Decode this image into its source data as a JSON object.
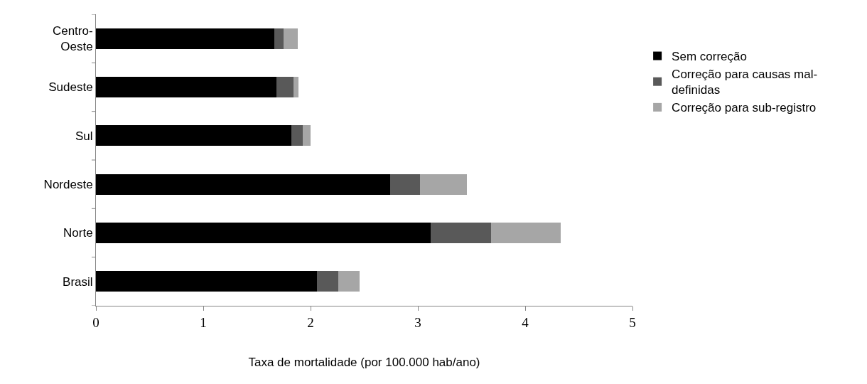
{
  "chart_data": {
    "type": "bar",
    "orientation": "horizontal",
    "stacked": true,
    "xlabel": "Taxa de mortalidade (por 100.000 hab/ano)",
    "categories": [
      "Centro-Oeste",
      "Sudeste",
      "Sul",
      "Nordeste",
      "Norte",
      "Brasil"
    ],
    "series": [
      {
        "name": "Sem correção",
        "color": "#000000",
        "values": [
          1.66,
          1.68,
          1.82,
          2.74,
          3.12,
          2.06
        ]
      },
      {
        "name": "Correção para causas mal-definidas",
        "color": "#595959",
        "values": [
          0.09,
          0.16,
          0.11,
          0.28,
          0.56,
          0.2
        ]
      },
      {
        "name": "Correção para sub-registro",
        "color": "#a6a6a6",
        "values": [
          0.13,
          0.05,
          0.07,
          0.44,
          0.65,
          0.2
        ]
      }
    ],
    "xlim": [
      0,
      5
    ],
    "xticks": [
      0,
      1,
      2,
      3,
      4,
      5
    ],
    "legend": "right"
  }
}
